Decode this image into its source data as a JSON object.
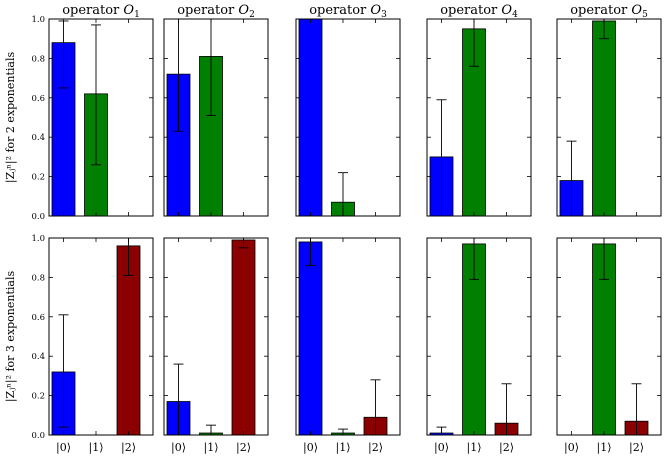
{
  "chart_data": {
    "type": "bar",
    "layout": {
      "rows": 2,
      "cols": 5
    },
    "colors": {
      "state0": "#0000ff",
      "state1": "#007f00",
      "state2": "#8b0000"
    },
    "ylim": [
      0,
      1.0
    ],
    "yticks": [
      "0.0",
      "0.2",
      "0.4",
      "0.6",
      "0.8",
      "1.0"
    ],
    "categories": [
      "|0⟩",
      "|1⟩",
      "|2⟩"
    ],
    "titles": [
      {
        "prefix": "operator ",
        "sym": "O",
        "sub": "1"
      },
      {
        "prefix": "operator ",
        "sym": "O",
        "sub": "2"
      },
      {
        "prefix": "operator ",
        "sym": "O",
        "sub": "3"
      },
      {
        "prefix": "operator ",
        "sym": "O",
        "sub": "4"
      },
      {
        "prefix": "operator ",
        "sym": "O",
        "sub": "5"
      }
    ],
    "rows": [
      {
        "ylabel": "|Zⱼⁿ|² for 2 exponentials",
        "panels": [
          {
            "values": [
              0.88,
              0.62
            ],
            "err_low": [
              0.65,
              0.26
            ],
            "err_high": [
              0.99,
              0.97
            ]
          },
          {
            "values": [
              0.72,
              0.81
            ],
            "err_low": [
              0.43,
              0.51
            ],
            "err_high": [
              1.0,
              1.0
            ]
          },
          {
            "values": [
              1.0,
              0.07
            ],
            "err_low": [
              1.0,
              0.0
            ],
            "err_high": [
              1.0,
              0.22
            ]
          },
          {
            "values": [
              0.3,
              0.95
            ],
            "err_low": [
              0.0,
              0.76
            ],
            "err_high": [
              0.59,
              1.0
            ]
          },
          {
            "values": [
              0.18,
              0.99
            ],
            "err_low": [
              0.0,
              0.9
            ],
            "err_high": [
              0.38,
              1.0
            ]
          }
        ]
      },
      {
        "ylabel": "|Zⱼⁿ|² for 3 exponentials",
        "panels": [
          {
            "values": [
              0.32,
              0.0,
              0.96
            ],
            "err_low": [
              0.04,
              0.0,
              0.81
            ],
            "err_high": [
              0.61,
              0.0,
              1.0
            ]
          },
          {
            "values": [
              0.17,
              0.01,
              0.99
            ],
            "err_low": [
              0.0,
              0.0,
              0.95
            ],
            "err_high": [
              0.36,
              0.05,
              1.0
            ]
          },
          {
            "values": [
              0.98,
              0.01,
              0.09
            ],
            "err_low": [
              0.86,
              0.0,
              0.0
            ],
            "err_high": [
              1.0,
              0.03,
              0.28
            ]
          },
          {
            "values": [
              0.01,
              0.97,
              0.06
            ],
            "err_low": [
              0.0,
              0.79,
              0.0
            ],
            "err_high": [
              0.04,
              1.0,
              0.26
            ]
          },
          {
            "values": [
              0.0,
              0.97,
              0.07
            ],
            "err_low": [
              0.0,
              0.79,
              0.0
            ],
            "err_high": [
              0.0,
              1.0,
              0.26
            ]
          }
        ]
      }
    ]
  }
}
